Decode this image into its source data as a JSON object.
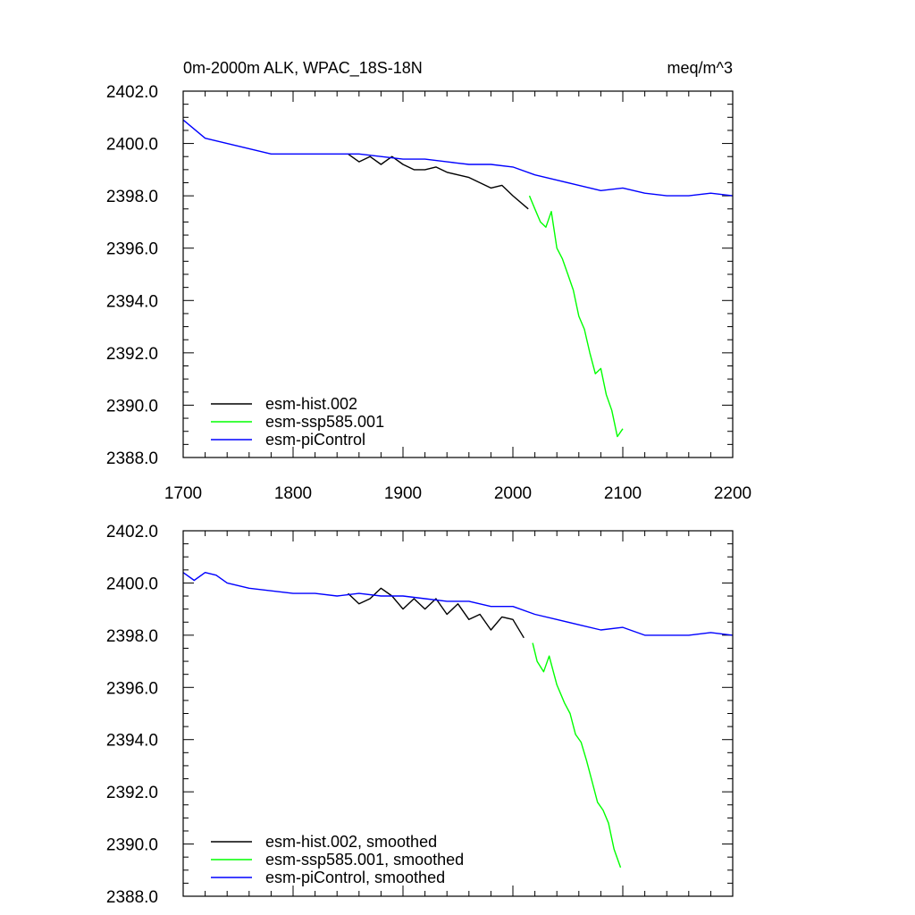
{
  "chart_data": [
    {
      "type": "line",
      "title": "0m-2000m ALK, WPAC_18S-18N",
      "units": "meq/m^3",
      "xlabel": "",
      "ylabel": "",
      "xlim": [
        1700,
        2200
      ],
      "ylim": [
        2388,
        2402
      ],
      "xticks": [
        "1700",
        "1800",
        "1900",
        "2000",
        "2100",
        "2200"
      ],
      "yticks": [
        "2388.0",
        "2390.0",
        "2392.0",
        "2394.0",
        "2396.0",
        "2398.0",
        "2400.0",
        "2402.0"
      ],
      "legend_position": "bottom-left",
      "series": [
        {
          "name": "esm-hist.002",
          "color": "#000000",
          "x": [
            1850,
            1860,
            1870,
            1880,
            1890,
            1900,
            1910,
            1920,
            1930,
            1940,
            1950,
            1960,
            1970,
            1980,
            1990,
            2000,
            2014
          ],
          "y": [
            2399.6,
            2399.3,
            2399.5,
            2399.2,
            2399.5,
            2399.2,
            2399.0,
            2399.0,
            2399.1,
            2398.9,
            2398.8,
            2398.7,
            2398.5,
            2398.3,
            2398.4,
            2398.0,
            2397.5
          ]
        },
        {
          "name": "esm-ssp585.001",
          "color": "#00ff00",
          "x": [
            2015,
            2020,
            2025,
            2030,
            2035,
            2040,
            2045,
            2050,
            2055,
            2060,
            2065,
            2070,
            2075,
            2080,
            2085,
            2090,
            2095,
            2100
          ],
          "y": [
            2398.0,
            2397.5,
            2397.0,
            2396.8,
            2397.4,
            2396.0,
            2395.6,
            2395.0,
            2394.4,
            2393.4,
            2392.9,
            2392.0,
            2391.2,
            2391.4,
            2390.4,
            2389.8,
            2388.8,
            2389.1
          ]
        },
        {
          "name": "esm-piControl",
          "color": "#0000ff",
          "x": [
            1700,
            1720,
            1740,
            1760,
            1780,
            1800,
            1820,
            1840,
            1860,
            1880,
            1900,
            1920,
            1940,
            1960,
            1980,
            2000,
            2020,
            2040,
            2060,
            2080,
            2100,
            2120,
            2140,
            2160,
            2180,
            2200
          ],
          "y": [
            2400.9,
            2400.2,
            2400.0,
            2399.8,
            2399.6,
            2399.6,
            2399.6,
            2399.6,
            2399.6,
            2399.5,
            2399.4,
            2399.4,
            2399.3,
            2399.2,
            2399.2,
            2399.1,
            2398.8,
            2398.6,
            2398.4,
            2398.2,
            2398.3,
            2398.1,
            2398.0,
            2398.0,
            2398.1,
            2398.0
          ]
        }
      ]
    },
    {
      "type": "line",
      "title": "",
      "xlabel": "",
      "ylabel": "",
      "xlim": [
        1700,
        2200
      ],
      "ylim": [
        2388,
        2402
      ],
      "yticks": [
        "2388.0",
        "2390.0",
        "2392.0",
        "2394.0",
        "2396.0",
        "2398.0",
        "2400.0",
        "2402.0"
      ],
      "legend_position": "bottom-left",
      "series": [
        {
          "name": "esm-hist.002, smoothed",
          "color": "#000000",
          "x": [
            1850,
            1860,
            1870,
            1880,
            1890,
            1900,
            1910,
            1920,
            1930,
            1940,
            1950,
            1960,
            1970,
            1980,
            1990,
            2000,
            2010
          ],
          "y": [
            2399.6,
            2399.2,
            2399.4,
            2399.8,
            2399.5,
            2399.0,
            2399.4,
            2399.0,
            2399.4,
            2398.8,
            2399.2,
            2398.6,
            2398.8,
            2398.2,
            2398.7,
            2398.6,
            2397.9
          ]
        },
        {
          "name": "esm-ssp585.001, smoothed",
          "color": "#00ff00",
          "x": [
            2018,
            2022,
            2028,
            2033,
            2040,
            2047,
            2052,
            2057,
            2062,
            2067,
            2072,
            2077,
            2082,
            2087,
            2092,
            2098
          ],
          "y": [
            2397.7,
            2397.0,
            2396.6,
            2397.2,
            2396.1,
            2395.4,
            2395.0,
            2394.2,
            2393.9,
            2393.2,
            2392.4,
            2391.6,
            2391.3,
            2390.8,
            2389.8,
            2389.1
          ]
        },
        {
          "name": "esm-piControl, smoothed",
          "color": "#0000ff",
          "x": [
            1700,
            1710,
            1720,
            1730,
            1740,
            1760,
            1780,
            1800,
            1820,
            1840,
            1860,
            1880,
            1900,
            1920,
            1940,
            1960,
            1980,
            2000,
            2020,
            2040,
            2060,
            2080,
            2100,
            2120,
            2140,
            2160,
            2180,
            2200
          ],
          "y": [
            2400.4,
            2400.1,
            2400.4,
            2400.3,
            2400.0,
            2399.8,
            2399.7,
            2399.6,
            2399.6,
            2399.5,
            2399.6,
            2399.5,
            2399.5,
            2399.4,
            2399.3,
            2399.3,
            2399.1,
            2399.1,
            2398.8,
            2398.6,
            2398.4,
            2398.2,
            2398.3,
            2398.0,
            2398.0,
            2398.0,
            2398.1,
            2398.0
          ]
        }
      ]
    }
  ]
}
